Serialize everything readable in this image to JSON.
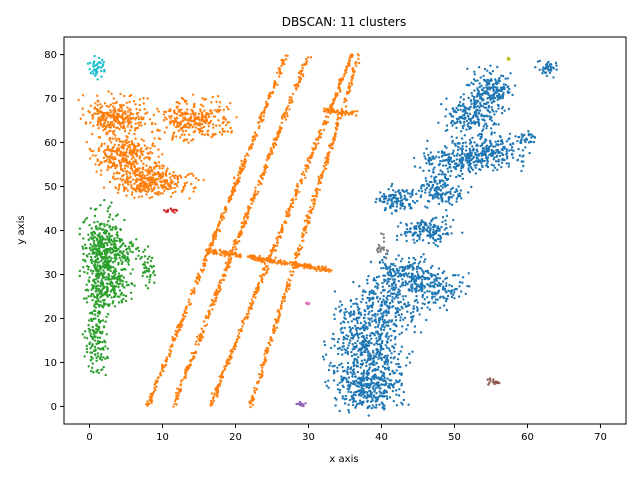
{
  "chart_data": {
    "type": "scatter",
    "title": "DBSCAN: 11 clusters",
    "xlabel": "x axis",
    "ylabel": "y axis",
    "xlim": [
      -3.5,
      73.5
    ],
    "ylim": [
      -4,
      84
    ],
    "xticks": [
      0,
      10,
      20,
      30,
      40,
      50,
      60,
      70
    ],
    "yticks": [
      0,
      10,
      20,
      30,
      40,
      50,
      60,
      70,
      80
    ],
    "grid": false,
    "series": [
      {
        "color": "#1f77b4",
        "blobs": [
          {
            "cx": 38,
            "cy": 5,
            "rx": 3.5,
            "ry": 4,
            "n": 380
          },
          {
            "cx": 38,
            "cy": 14,
            "rx": 3.5,
            "ry": 5,
            "n": 340
          },
          {
            "cx": 40,
            "cy": 22,
            "rx": 4,
            "ry": 4,
            "n": 260
          },
          {
            "cx": 43,
            "cy": 30,
            "rx": 3,
            "ry": 3,
            "n": 200
          },
          {
            "cx": 47,
            "cy": 27,
            "rx": 3,
            "ry": 3,
            "n": 160
          },
          {
            "cx": 42,
            "cy": 47,
            "rx": 2,
            "ry": 2,
            "n": 110
          },
          {
            "cx": 46,
            "cy": 40,
            "rx": 2.5,
            "ry": 2,
            "n": 150
          },
          {
            "cx": 48,
            "cy": 49,
            "rx": 2.5,
            "ry": 2.5,
            "n": 140
          },
          {
            "cx": 50,
            "cy": 56,
            "rx": 3,
            "ry": 2.5,
            "n": 180
          },
          {
            "cx": 55,
            "cy": 58,
            "rx": 3,
            "ry": 3,
            "n": 230
          },
          {
            "cx": 52,
            "cy": 66,
            "rx": 2.5,
            "ry": 3,
            "n": 190
          },
          {
            "cx": 55,
            "cy": 72,
            "rx": 2,
            "ry": 3,
            "n": 200
          },
          {
            "cx": 63,
            "cy": 77,
            "rx": 1,
            "ry": 1.2,
            "n": 40
          },
          {
            "cx": 60,
            "cy": 61,
            "rx": 1,
            "ry": 1,
            "n": 30
          }
        ]
      },
      {
        "color": "#ff7f0e",
        "blobs": [
          {
            "cx": 3.5,
            "cy": 66,
            "rx": 3,
            "ry": 3,
            "n": 280
          },
          {
            "cx": 5,
            "cy": 57,
            "rx": 3,
            "ry": 3,
            "n": 280
          },
          {
            "cx": 8.5,
            "cy": 51,
            "rx": 3.5,
            "ry": 2.5,
            "n": 320
          },
          {
            "cx": 14.5,
            "cy": 65,
            "rx": 3.5,
            "ry": 3,
            "n": 300
          }
        ],
        "lines": [
          {
            "x1": 8,
            "y1": 0,
            "x2": 27,
            "y2": 80,
            "n": 380
          },
          {
            "x1": 11.5,
            "y1": 0,
            "x2": 30,
            "y2": 80,
            "n": 380
          },
          {
            "x1": 16.5,
            "y1": 0,
            "x2": 36,
            "y2": 80,
            "n": 380
          },
          {
            "x1": 22,
            "y1": 0,
            "x2": 37,
            "y2": 80,
            "n": 330
          },
          {
            "x1": 16,
            "y1": 35.5,
            "x2": 33,
            "y2": 31,
            "n": 260
          },
          {
            "x1": 32,
            "y1": 67.5,
            "x2": 36.5,
            "y2": 66.5,
            "n": 60
          }
        ]
      },
      {
        "color": "#2ca02c",
        "blobs": [
          {
            "cx": 2,
            "cy": 35,
            "rx": 2,
            "ry": 6,
            "n": 420
          },
          {
            "cx": 2.5,
            "cy": 27,
            "rx": 2,
            "ry": 3,
            "n": 180
          },
          {
            "cx": 1,
            "cy": 16,
            "rx": 1,
            "ry": 6,
            "n": 150
          },
          {
            "cx": 5,
            "cy": 35,
            "rx": 1.2,
            "ry": 2,
            "n": 50
          },
          {
            "cx": 8,
            "cy": 32,
            "rx": 0.7,
            "ry": 3,
            "n": 40
          }
        ]
      },
      {
        "color": "#d62728",
        "blobs": [
          {
            "cx": 11,
            "cy": 44.5,
            "rx": 0.8,
            "ry": 0.4,
            "n": 14
          }
        ]
      },
      {
        "color": "#9467bd",
        "blobs": [
          {
            "cx": 29,
            "cy": 0.5,
            "rx": 0.6,
            "ry": 0.3,
            "n": 16
          }
        ]
      },
      {
        "color": "#8c564b",
        "blobs": [
          {
            "cx": 55.5,
            "cy": 5.5,
            "rx": 0.8,
            "ry": 0.6,
            "n": 16
          }
        ]
      },
      {
        "color": "#e377c2",
        "blobs": [
          {
            "cx": 30,
            "cy": 23.5,
            "rx": 0.3,
            "ry": 0.4,
            "n": 8
          }
        ]
      },
      {
        "color": "#7f7f7f",
        "blobs": [
          {
            "cx": 40,
            "cy": 36,
            "rx": 0.6,
            "ry": 2,
            "n": 20
          }
        ]
      },
      {
        "color": "#bcbd22",
        "blobs": [
          {
            "cx": 57.5,
            "cy": 79,
            "rx": 0.3,
            "ry": 0.2,
            "n": 5
          }
        ]
      },
      {
        "color": "#17becf",
        "blobs": [
          {
            "cx": 1,
            "cy": 77,
            "rx": 0.8,
            "ry": 2,
            "n": 40
          }
        ]
      }
    ]
  }
}
